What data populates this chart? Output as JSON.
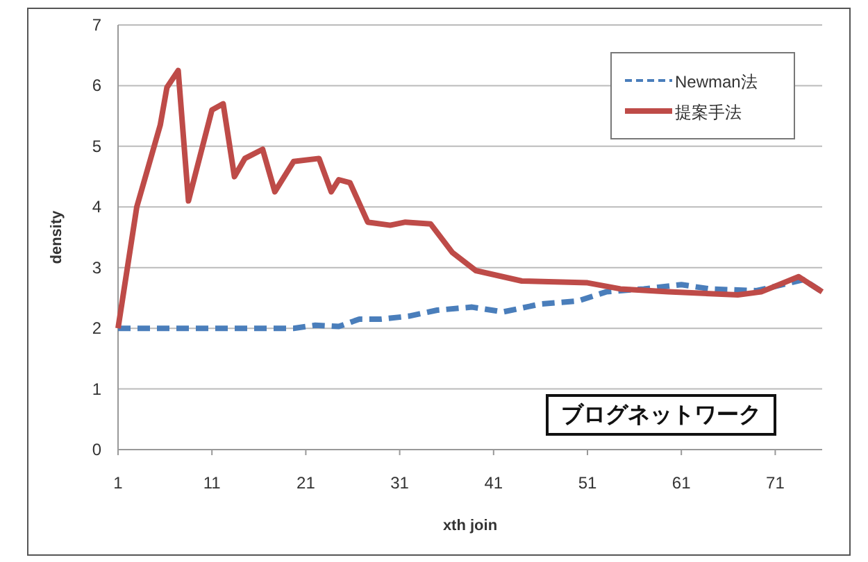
{
  "chart_data": {
    "type": "line",
    "xlabel": "xth join",
    "ylabel": "density",
    "xlim": [
      1,
      76
    ],
    "xticks": [
      1,
      11,
      21,
      31,
      41,
      51,
      61,
      71
    ],
    "ylim": [
      0,
      7
    ],
    "yticks": [
      0,
      1,
      2,
      3,
      4,
      5,
      6,
      7
    ],
    "grid": "y",
    "legend": "top right",
    "annotations": [
      "ブログネットワーク"
    ],
    "series": [
      {
        "name": "Newman法",
        "color": "#4a7ebb",
        "line_style": "dashed",
        "x": [
          1,
          10,
          19.7,
          22,
          24.5,
          26.7,
          29,
          32,
          35,
          38.7,
          42,
          46,
          50,
          53,
          57,
          61,
          64,
          69,
          74,
          76
        ],
        "values": [
          2.0,
          2.0,
          2.0,
          2.05,
          2.03,
          2.15,
          2.15,
          2.2,
          2.3,
          2.35,
          2.27,
          2.4,
          2.45,
          2.6,
          2.65,
          2.72,
          2.65,
          2.62,
          2.8,
          2.6
        ]
      },
      {
        "name": "提案手法",
        "color": "#be4b48",
        "line_style": "solid",
        "x": [
          1,
          3,
          5.5,
          6.2,
          7.4,
          8.5,
          11,
          12.2,
          13.4,
          14.5,
          16.4,
          17.7,
          19.7,
          22.4,
          23.7,
          24.5,
          25.7,
          27.6,
          30,
          31.6,
          34.3,
          36.6,
          39.1,
          44,
          51,
          54.5,
          59.6,
          67,
          69.5,
          73.5,
          76
        ],
        "values": [
          2.0,
          4.0,
          5.35,
          5.97,
          6.25,
          4.1,
          5.6,
          5.7,
          4.5,
          4.8,
          4.95,
          4.25,
          4.75,
          4.8,
          4.25,
          4.45,
          4.4,
          3.75,
          3.7,
          3.75,
          3.72,
          3.25,
          2.95,
          2.78,
          2.75,
          2.65,
          2.6,
          2.55,
          2.6,
          2.85,
          2.6
        ]
      }
    ]
  }
}
